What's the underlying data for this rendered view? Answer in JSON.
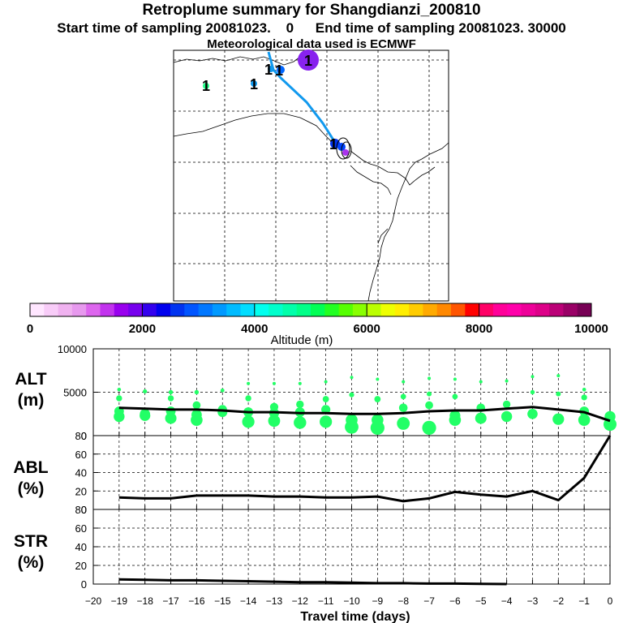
{
  "header": {
    "title": "Retroplume summary for Shangdianzi_200810",
    "start_label": "Start time of sampling 20081023.",
    "start_value": "0",
    "end_label": "End time of sampling 20081023. 30000",
    "met_line": "Meteorological data used is ECMWF"
  },
  "map": {
    "marker_label": "1"
  },
  "colorbar": {
    "label": "Altitude (m)",
    "ticks": [
      "0",
      "2000",
      "4000",
      "6000",
      "8000",
      "10000"
    ],
    "colors": [
      "#ffe6ff",
      "#f8ccf8",
      "#f0b2f0",
      "#e799ee",
      "#dd66ee",
      "#c233ee",
      "#9900ee",
      "#7700ee",
      "#3300ee",
      "#0000ee",
      "#0033f0",
      "#0055ff",
      "#0077ff",
      "#0099ff",
      "#00bbff",
      "#00ddff",
      "#00ffee",
      "#00ffcc",
      "#00ffaa",
      "#00ff88",
      "#00ff55",
      "#22ff22",
      "#55ff00",
      "#88ff00",
      "#bbff00",
      "#eeff00",
      "#ffee00",
      "#ffcc00",
      "#ffaa00",
      "#ff8800",
      "#ff5500",
      "#ff0000",
      "#ff0066",
      "#ff0099",
      "#ff00aa",
      "#ee0099",
      "#dd0088",
      "#bb0077",
      "#990066",
      "#770055"
    ]
  },
  "chart_data": [
    {
      "type": "line",
      "panel": "ALT",
      "ylabel_line1": "ALT",
      "ylabel_line2": "(m)",
      "ylim": [
        0,
        10000
      ],
      "yticks": [
        "10000",
        "5000",
        "0"
      ],
      "x": [
        -19,
        -18,
        -17,
        -16,
        -15,
        -14,
        -13,
        -12,
        -11,
        -10,
        -9,
        -8,
        -7,
        -6,
        -5,
        -4,
        -3,
        -2,
        -1,
        0
      ],
      "values": [
        3200,
        3100,
        3000,
        3000,
        2900,
        2700,
        2700,
        2600,
        2600,
        2500,
        2500,
        2600,
        2800,
        2900,
        2900,
        3100,
        3300,
        3000,
        2700,
        1700
      ],
      "scatter": {
        "color": "#22ff66",
        "points": [
          [
            -19,
            5300
          ],
          [
            -19,
            4300
          ],
          [
            -19,
            2800
          ],
          [
            -19,
            2200
          ],
          [
            -18,
            5100
          ],
          [
            -18,
            2500
          ],
          [
            -18,
            2300
          ],
          [
            -17,
            5000
          ],
          [
            -17,
            4300
          ],
          [
            -17,
            2800
          ],
          [
            -17,
            2000
          ],
          [
            -16,
            5000
          ],
          [
            -16,
            3500
          ],
          [
            -16,
            2400
          ],
          [
            -16,
            1800
          ],
          [
            -15,
            5200
          ],
          [
            -15,
            3000
          ],
          [
            -15,
            2700
          ],
          [
            -14,
            6000
          ],
          [
            -14,
            4300
          ],
          [
            -14,
            2700
          ],
          [
            -14,
            1600
          ],
          [
            -13,
            6000
          ],
          [
            -13,
            3300
          ],
          [
            -13,
            2600
          ],
          [
            -13,
            1700
          ],
          [
            -12,
            6000
          ],
          [
            -12,
            3600
          ],
          [
            -12,
            2700
          ],
          [
            -12,
            1500
          ],
          [
            -11,
            6200
          ],
          [
            -11,
            4200
          ],
          [
            -11,
            3000
          ],
          [
            -11,
            1600
          ],
          [
            -10,
            6700
          ],
          [
            -10,
            4700
          ],
          [
            -10,
            1800
          ],
          [
            -10,
            1000
          ],
          [
            -9,
            6500
          ],
          [
            -9,
            4200
          ],
          [
            -9,
            1800
          ],
          [
            -9,
            900
          ],
          [
            -8,
            6200
          ],
          [
            -8,
            4500
          ],
          [
            -8,
            3200
          ],
          [
            -8,
            1400
          ],
          [
            -7,
            6600
          ],
          [
            -7,
            4800
          ],
          [
            -7,
            3500
          ],
          [
            -7,
            900
          ],
          [
            -6,
            6500
          ],
          [
            -6,
            4500
          ],
          [
            -6,
            2300
          ],
          [
            -6,
            1800
          ],
          [
            -5,
            6200
          ],
          [
            -5,
            3200
          ],
          [
            -5,
            2000
          ],
          [
            -4,
            6300
          ],
          [
            -4,
            3600
          ],
          [
            -4,
            2200
          ],
          [
            -3,
            6800
          ],
          [
            -3,
            5000
          ],
          [
            -3,
            2500
          ],
          [
            -2,
            6900
          ],
          [
            -2,
            4800
          ],
          [
            -2,
            1900
          ],
          [
            -1,
            5300
          ],
          [
            -1,
            4400
          ],
          [
            -1,
            2800
          ],
          [
            -1,
            1800
          ],
          [
            0,
            2200
          ],
          [
            0,
            1300
          ]
        ]
      }
    },
    {
      "type": "line",
      "panel": "ABL",
      "ylabel_line1": "ABL",
      "ylabel_line2": "(%)",
      "ylim": [
        0,
        80
      ],
      "yticks": [
        "80",
        "60",
        "40",
        "20",
        "0"
      ],
      "x": [
        -19,
        -18,
        -17,
        -16,
        -15,
        -14,
        -13,
        -12,
        -11,
        -10,
        -9,
        -8,
        -7,
        -6,
        -5,
        -4,
        -3,
        -2,
        -1,
        0
      ],
      "values": [
        13,
        12,
        12,
        15,
        15,
        15,
        14,
        14,
        13,
        13,
        14,
        9,
        12,
        19,
        16,
        14,
        20,
        10,
        34,
        80
      ]
    },
    {
      "type": "line",
      "panel": "STR",
      "ylabel_line1": "STR",
      "ylabel_line2": "(%)",
      "ylim": [
        0,
        80
      ],
      "yticks": [
        "80",
        "60",
        "40",
        "20",
        "0"
      ],
      "x": [
        -19,
        -18,
        -17,
        -16,
        -15,
        -14,
        -13,
        -12,
        -11,
        -10,
        -9,
        -8,
        -7,
        -6,
        -5,
        -4
      ],
      "values": [
        5,
        4.5,
        4,
        4,
        3.5,
        3,
        2.5,
        2,
        2,
        1.5,
        1,
        1,
        0.5,
        0.5,
        0.2,
        0
      ]
    }
  ],
  "xaxis": {
    "label": "Travel time (days)",
    "ticks": [
      "−20",
      "−19",
      "−18",
      "−17",
      "−16",
      "−15",
      "−14",
      "−13",
      "−12",
      "−11",
      "−10",
      "−9",
      "−8",
      "−7",
      "−6",
      "−5",
      "−4",
      "−3",
      "−2",
      "−1",
      "0"
    ]
  }
}
